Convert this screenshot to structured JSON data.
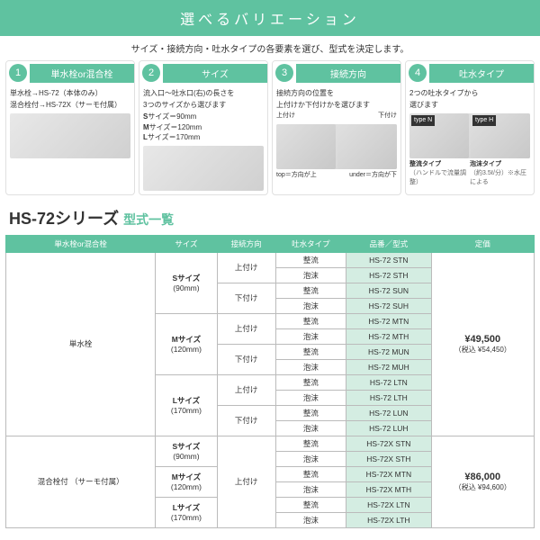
{
  "banner": "選べるバリエーション",
  "subtitle": "サイズ・接続方向・吐水タイプの各要素を選び、型式を決定します。",
  "steps": [
    {
      "num": "1",
      "title": "単水栓or混合栓",
      "lines": [
        "単水栓→HS-72（本体のみ）",
        "混合栓付→HS-72X（サーモ付属）"
      ],
      "image": "single"
    },
    {
      "num": "2",
      "title": "サイズ",
      "lines": [
        "流入口～吐水口(右)の長さを",
        "3つのサイズから選びます"
      ],
      "sizes": [
        {
          "label": "S",
          "val": "サイズ＝90mm"
        },
        {
          "label": "M",
          "val": "サイズ＝120mm"
        },
        {
          "label": "L",
          "val": "サイズ＝170mm"
        }
      ],
      "image": "single"
    },
    {
      "num": "3",
      "title": "接続方向",
      "lines": [
        "接続方向の位置を",
        "上付けか下付けかを選びます"
      ],
      "pair_labels": [
        "上付け",
        "下付け"
      ],
      "foot_labels": [
        "top＝方向が上",
        "under＝方向が下"
      ]
    },
    {
      "num": "4",
      "title": "吐水タイプ",
      "lines": [
        "2つの吐水タイプから",
        "選びます"
      ],
      "types": [
        {
          "tag": "type N",
          "name": "整流タイプ",
          "note": "（ハンドルで流量調整）"
        },
        {
          "tag": "type H",
          "name": "泡沫タイプ",
          "note": "（約3.5ℓ/分）※水圧による"
        }
      ]
    }
  ],
  "series": {
    "name": "HS-72",
    "suffix": "シリーズ",
    "sub": "型式一覧"
  },
  "table": {
    "headers": [
      "単水栓or混合栓",
      "サイズ",
      "接続方向",
      "吐水タイプ",
      "品番／型式",
      "定価"
    ],
    "groups": [
      {
        "type": "単水栓",
        "price_main": "¥49,500",
        "price_tax": "（税込 ¥54,450）",
        "sizes": [
          {
            "size": "Sサイズ",
            "dim": "(90mm)",
            "conns": [
              {
                "conn": "上付け",
                "rows": [
                  [
                    "整流",
                    "HS-72 STN"
                  ],
                  [
                    "泡沫",
                    "HS-72 STH"
                  ]
                ]
              },
              {
                "conn": "下付け",
                "rows": [
                  [
                    "整流",
                    "HS-72 SUN"
                  ],
                  [
                    "泡沫",
                    "HS-72 SUH"
                  ]
                ]
              }
            ]
          },
          {
            "size": "Mサイズ",
            "dim": "(120mm)",
            "conns": [
              {
                "conn": "上付け",
                "rows": [
                  [
                    "整流",
                    "HS-72 MTN"
                  ],
                  [
                    "泡沫",
                    "HS-72 MTH"
                  ]
                ]
              },
              {
                "conn": "下付け",
                "rows": [
                  [
                    "整流",
                    "HS-72 MUN"
                  ],
                  [
                    "泡沫",
                    "HS-72 MUH"
                  ]
                ]
              }
            ]
          },
          {
            "size": "Lサイズ",
            "dim": "(170mm)",
            "conns": [
              {
                "conn": "上付け",
                "rows": [
                  [
                    "整流",
                    "HS-72 LTN"
                  ],
                  [
                    "泡沫",
                    "HS-72 LTH"
                  ]
                ]
              },
              {
                "conn": "下付け",
                "rows": [
                  [
                    "整流",
                    "HS-72 LUN"
                  ],
                  [
                    "泡沫",
                    "HS-72 LUH"
                  ]
                ]
              }
            ]
          }
        ]
      },
      {
        "type": "混合栓付\n（サーモ付属）",
        "price_main": "¥86,000",
        "price_tax": "（税込 ¥94,600）",
        "conn": "上付け",
        "sizes": [
          {
            "size": "Sサイズ",
            "dim": "(90mm)",
            "rows": [
              [
                "整流",
                "HS-72X STN"
              ],
              [
                "泡沫",
                "HS-72X STH"
              ]
            ]
          },
          {
            "size": "Mサイズ",
            "dim": "(120mm)",
            "rows": [
              [
                "整流",
                "HS-72X MTN"
              ],
              [
                "泡沫",
                "HS-72X MTH"
              ]
            ]
          },
          {
            "size": "Lサイズ",
            "dim": "(170mm)",
            "rows": [
              [
                "整流",
                "HS-72X LTN"
              ],
              [
                "泡沫",
                "HS-72X LTH"
              ]
            ]
          }
        ]
      }
    ]
  },
  "colors": {
    "accent": "#5fc2a0",
    "model_bg": "#d4ede2"
  }
}
